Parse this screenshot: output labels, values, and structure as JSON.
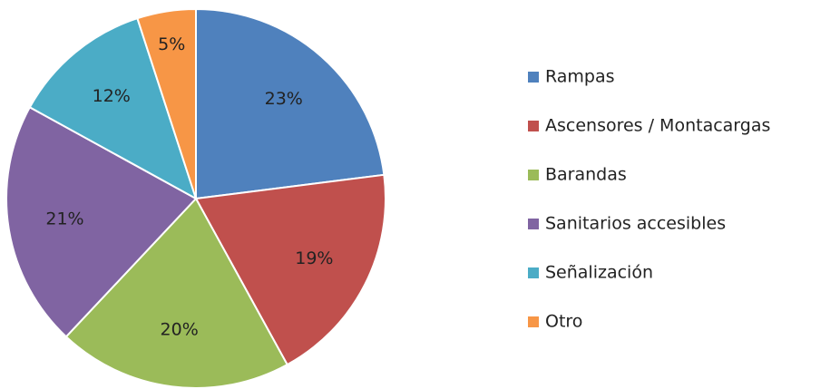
{
  "chart_data": {
    "type": "pie",
    "categories": [
      "Rampas",
      "Ascensores / Montacargas",
      "Barandas",
      "Sanitarios accesibles",
      "Señalización",
      "Otro"
    ],
    "values": [
      23,
      19,
      20,
      21,
      12,
      5
    ],
    "value_labels": [
      "23%",
      "19%",
      "20%",
      "21%",
      "12%",
      "5%"
    ],
    "colors": [
      "#4f81bd",
      "#c0504d",
      "#9bbb59",
      "#8064a2",
      "#4bacc6",
      "#f79646"
    ],
    "legend": "right"
  }
}
